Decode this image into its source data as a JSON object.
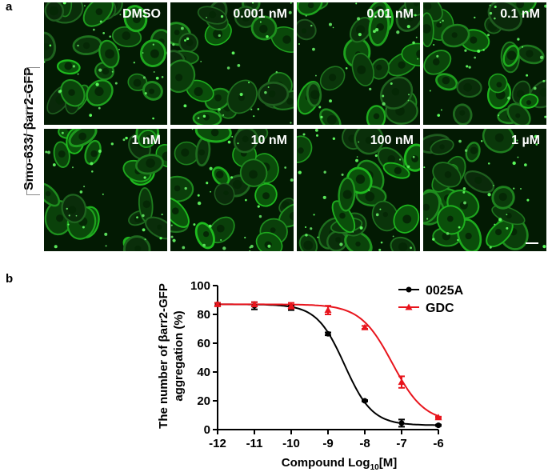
{
  "panel_a": {
    "letter": "a",
    "side_label": "Smo-633/ βarr2-GFP",
    "tiles": [
      "DMSO",
      "0.001 nM",
      "0.01 nM",
      "0.1 nM",
      "1 nM",
      "10 nM",
      "100 nM",
      "1 µM"
    ]
  },
  "panel_b": {
    "letter": "b"
  },
  "chart_data": {
    "type": "line",
    "x": [
      -12,
      -11,
      -10,
      -9,
      -8,
      -7,
      -6
    ],
    "xticks": [
      "-12",
      "-11",
      "-10",
      "-9",
      "-8",
      "-7",
      "-6"
    ],
    "xlim": [
      -12,
      -6
    ],
    "ylim": [
      0,
      100
    ],
    "yticks": [
      "0",
      "20",
      "40",
      "60",
      "80",
      "100"
    ],
    "xlabel": "Compound  Log10[M]",
    "xlabel_main": "Compound  Log",
    "xlabel_sub": "10",
    "xlabel_tail": "[M]",
    "ylabel_line1": "The number of βarr2-GFP",
    "ylabel_line2": "aggregation (%)",
    "legend_position": "top-right",
    "series": [
      {
        "name": "0025A",
        "color": "#000000",
        "marker": "circle",
        "values": [
          87,
          86,
          84.5,
          66.5,
          20,
          4.5,
          3
        ],
        "errors": [
          1,
          2.5,
          1.5,
          1,
          0.5,
          2.5,
          0.5
        ],
        "fit": {
          "top": 87,
          "bottom": 3,
          "logEC50": -8.55,
          "hill": 1.15
        }
      },
      {
        "name": "GDC",
        "color": "#e8141c",
        "marker": "triangle",
        "values": [
          87,
          87,
          86,
          83,
          71,
          33,
          8.5
        ],
        "errors": [
          1,
          1.5,
          2,
          3,
          1,
          4,
          0.5
        ],
        "fit": {
          "top": 87,
          "bottom": 5,
          "logEC50": -7.25,
          "hill": 1.0
        }
      }
    ]
  }
}
